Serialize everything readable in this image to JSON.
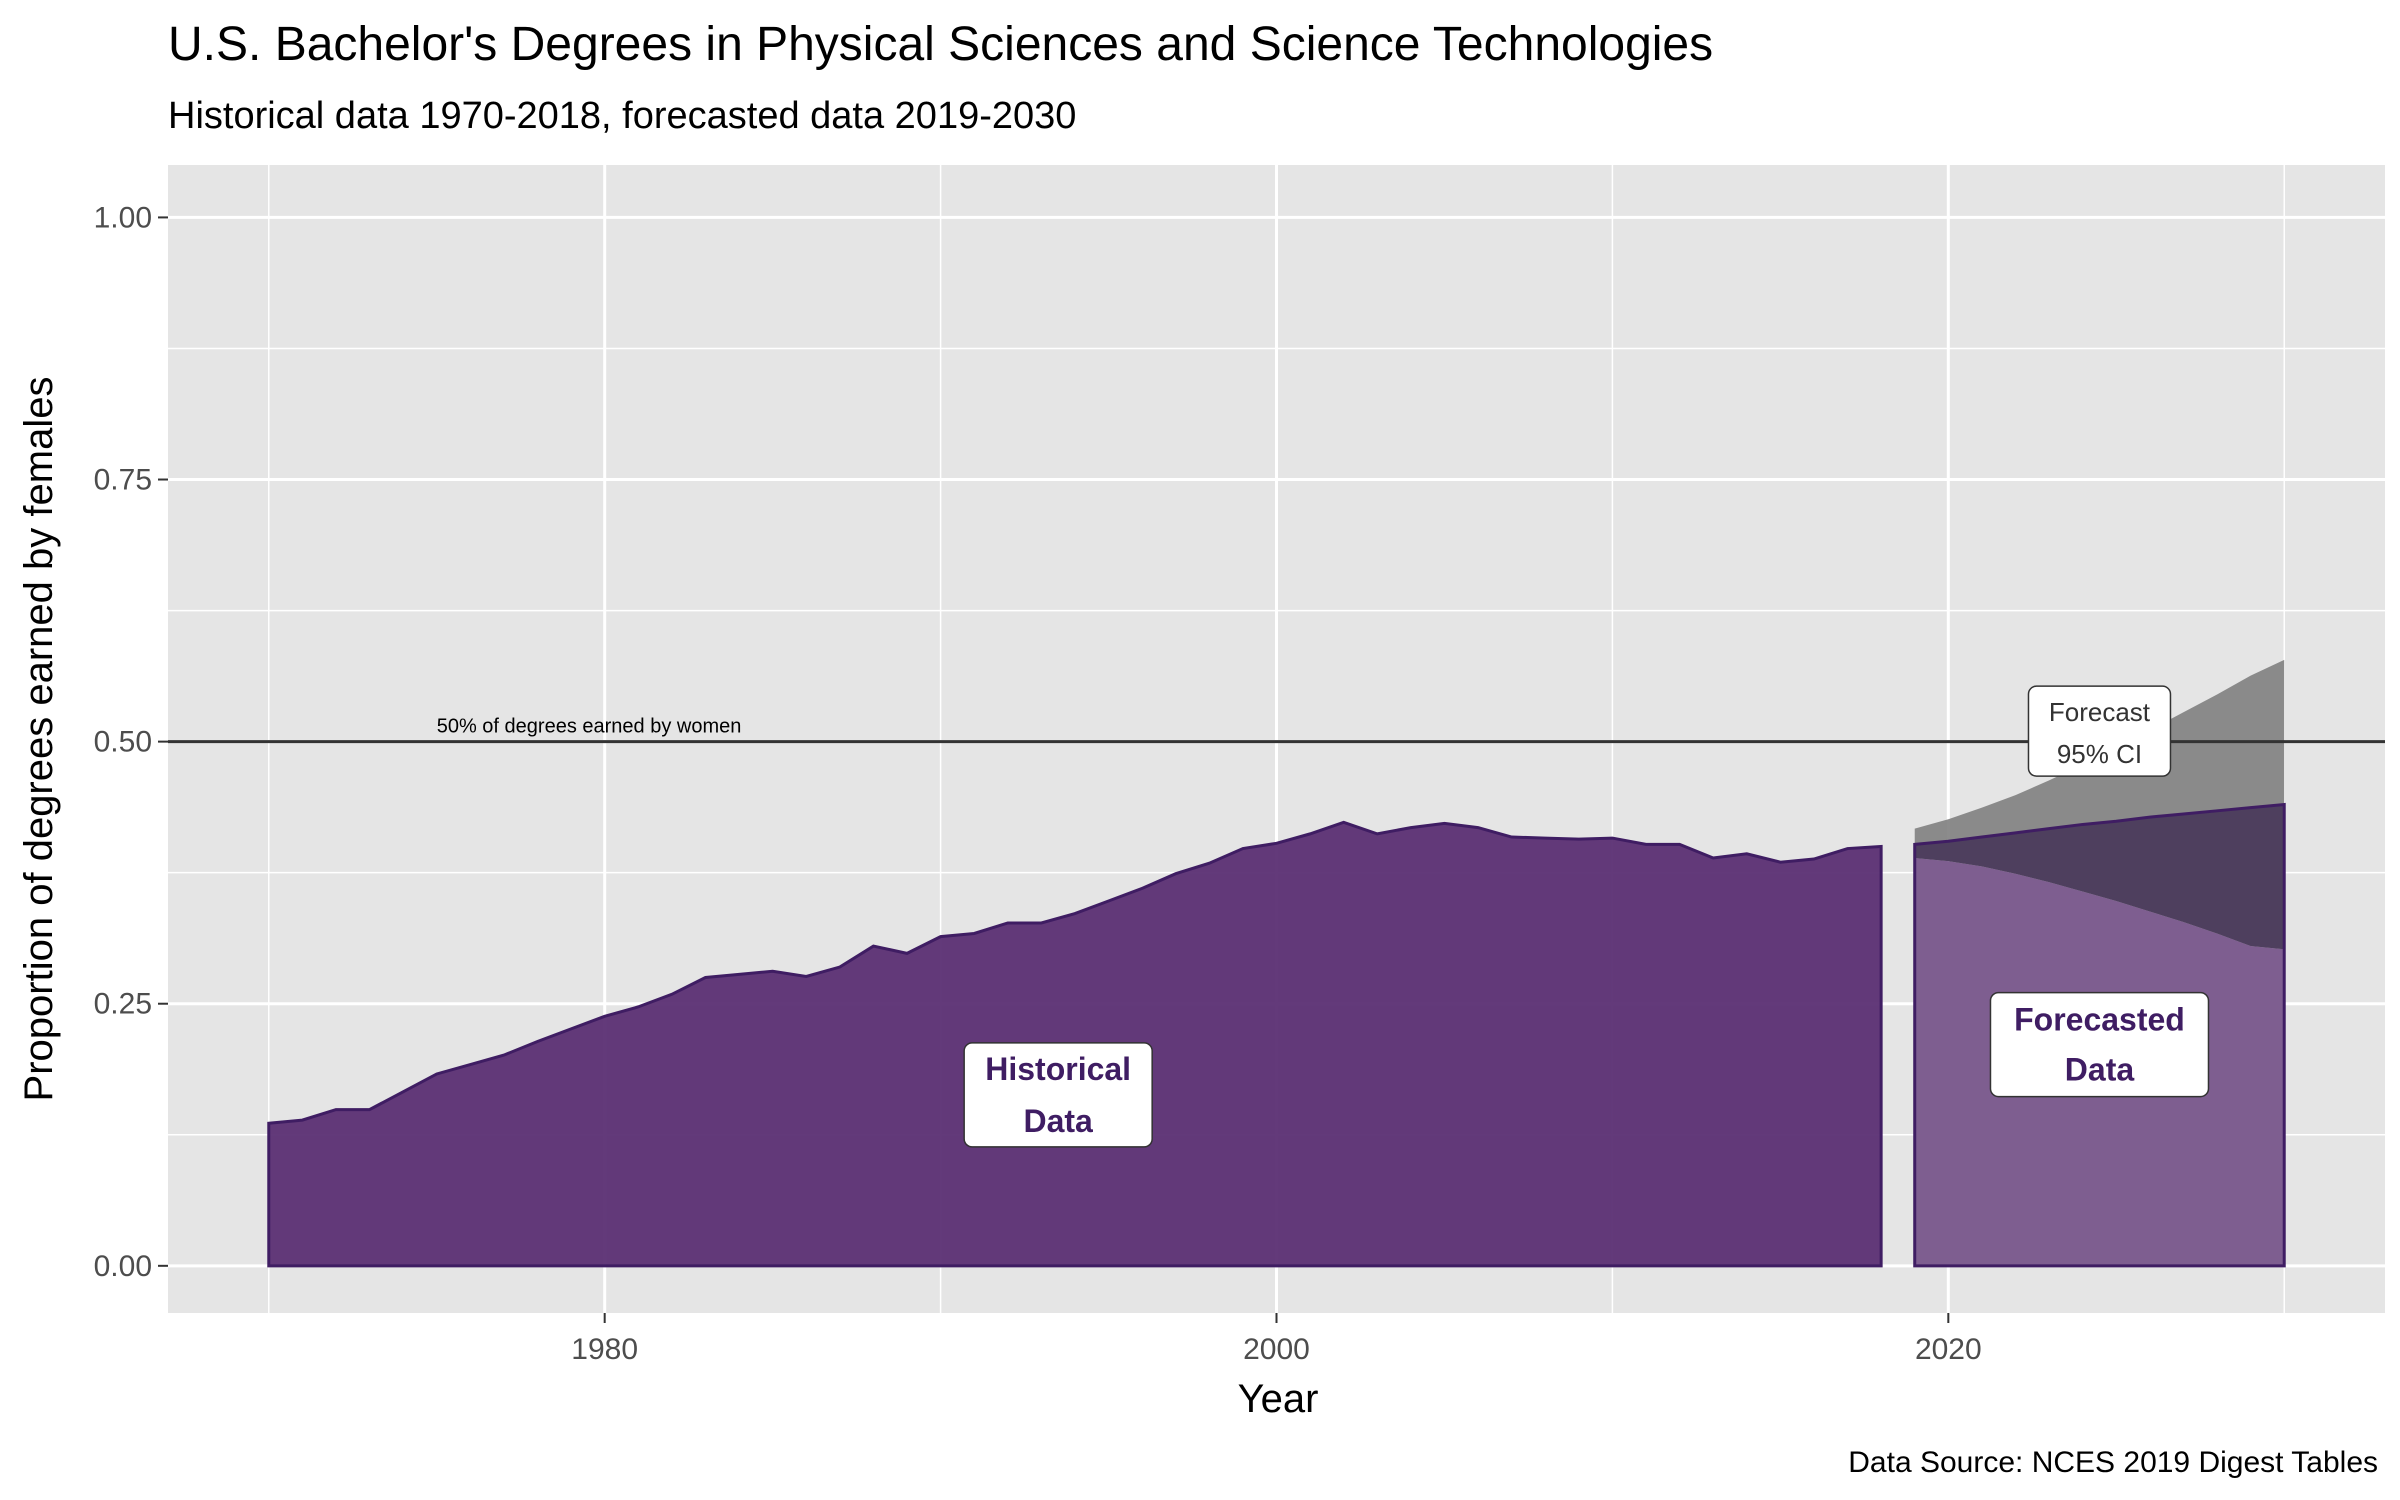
{
  "chart_data": {
    "type": "area",
    "title": "U.S. Bachelor's Degrees in Physical Sciences and Science Technologies",
    "subtitle": "Historical data 1970-2018, forecasted data 2019-2030",
    "xlabel": "Year",
    "ylabel": "Proportion of degrees earned by females",
    "caption": "Data Source: NCES 2019 Digest Tables",
    "xlim": [
      1967,
      2033
    ],
    "ylim": [
      -0.045,
      1.05
    ],
    "x_ticks": [
      1980,
      2000,
      2020
    ],
    "y_ticks": [
      0.0,
      0.25,
      0.5,
      0.75,
      1.0
    ],
    "y_tick_labels": [
      "0.00",
      "0.25",
      "0.50",
      "0.75",
      "1.00"
    ],
    "grid": true,
    "colors": {
      "panel_background": "#e5e5e5",
      "grid": "#ffffff",
      "historical_fill": "#5b2f73",
      "historical_outline": "#3f1d63",
      "forecast_fill": "#7e5e90",
      "ci_fill": "#808080",
      "overlap_fill": "#4e3f5e",
      "reference_line": "#333333",
      "label_text": "#3f1d63"
    },
    "reference_line": {
      "y": 0.5,
      "label": "50% of degrees earned by women",
      "label_x": 1975
    },
    "series": [
      {
        "name": "Historical",
        "x": [
          1970,
          1971,
          1972,
          1973,
          1974,
          1975,
          1976,
          1977,
          1978,
          1979,
          1980,
          1981,
          1982,
          1983,
          1984,
          1985,
          1986,
          1987,
          1988,
          1989,
          1990,
          1991,
          1992,
          1993,
          1994,
          1995,
          1996,
          1997,
          1998,
          1999,
          2000,
          2001,
          2002,
          2003,
          2004,
          2005,
          2006,
          2007,
          2008,
          2009,
          2010,
          2011,
          2012,
          2013,
          2014,
          2015,
          2016,
          2017,
          2018
        ],
        "y": [
          0.136,
          0.139,
          0.149,
          0.149,
          0.166,
          0.183,
          0.192,
          0.201,
          0.214,
          0.226,
          0.238,
          0.247,
          0.259,
          0.275,
          0.278,
          0.281,
          0.276,
          0.285,
          0.305,
          0.298,
          0.314,
          0.317,
          0.327,
          0.327,
          0.336,
          0.348,
          0.36,
          0.374,
          0.384,
          0.398,
          0.403,
          0.412,
          0.423,
          0.412,
          0.418,
          0.422,
          0.418,
          0.409,
          0.408,
          0.407,
          0.408,
          0.402,
          0.402,
          0.389,
          0.393,
          0.385,
          0.388,
          0.398,
          0.4
        ]
      },
      {
        "name": "Forecast",
        "x": [
          2019,
          2020,
          2021,
          2022,
          2023,
          2024,
          2025,
          2026,
          2027,
          2028,
          2029,
          2030
        ],
        "y": [
          0.402,
          0.405,
          0.409,
          0.413,
          0.417,
          0.421,
          0.424,
          0.428,
          0.431,
          0.434,
          0.437,
          0.44
        ],
        "lower": [
          0.389,
          0.386,
          0.381,
          0.374,
          0.366,
          0.357,
          0.348,
          0.338,
          0.328,
          0.317,
          0.305,
          0.302
        ],
        "upper": [
          0.417,
          0.426,
          0.437,
          0.449,
          0.463,
          0.478,
          0.494,
          0.511,
          0.528,
          0.545,
          0.563,
          0.578
        ]
      }
    ],
    "annotations": [
      {
        "line1": "Historical",
        "line2": "Data",
        "x": 1993.5,
        "y": 0.163
      },
      {
        "line1": "Forecasted",
        "line2": "Data",
        "x": 2024.5,
        "y": 0.211
      },
      {
        "line1": "Forecast",
        "line2": "95% CI",
        "x": 2024.5,
        "y": 0.51
      }
    ]
  }
}
